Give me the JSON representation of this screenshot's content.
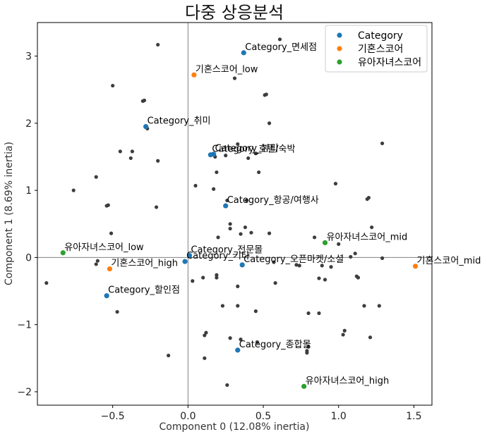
{
  "chart_data": {
    "type": "scatter",
    "title": "다중 상응분석",
    "xlabel": "Component 0 (12.08% inertia)",
    "ylabel": "Component 1 (8.69% inertia)",
    "xlim": [
      -1.0,
      1.62
    ],
    "ylim": [
      -2.2,
      3.5
    ],
    "xticks": [
      {
        "value": -0.5,
        "label": "−0.5"
      },
      {
        "value": 0.0,
        "label": "0.0"
      },
      {
        "value": 0.5,
        "label": "0.5"
      },
      {
        "value": 1.0,
        "label": "1.0"
      },
      {
        "value": 1.5,
        "label": "1.5"
      }
    ],
    "yticks": [
      {
        "value": -2,
        "label": "−2"
      },
      {
        "value": -1,
        "label": "−1"
      },
      {
        "value": 0,
        "label": "0"
      },
      {
        "value": 1,
        "label": "1"
      },
      {
        "value": 2,
        "label": "2"
      },
      {
        "value": 3,
        "label": "3"
      }
    ],
    "grid": false,
    "reference_lines": {
      "x": 0,
      "y": 0
    },
    "legend_position": "top-right",
    "background_points": {
      "color": "#3d3d3d",
      "points": [
        [
          0.61,
          3.25
        ],
        [
          -0.2,
          3.17
        ],
        [
          -0.5,
          2.56
        ],
        [
          -0.29,
          2.34
        ],
        [
          -0.3,
          2.33
        ],
        [
          0.31,
          2.67
        ],
        [
          0.51,
          2.42
        ],
        [
          0.52,
          2.43
        ],
        [
          0.54,
          2.0
        ],
        [
          1.29,
          1.7
        ],
        [
          0.33,
          1.69
        ],
        [
          -0.45,
          1.58
        ],
        [
          -0.37,
          1.58
        ],
        [
          -0.38,
          1.48
        ],
        [
          -0.2,
          1.44
        ],
        [
          -0.27,
          1.92
        ],
        [
          0.45,
          1.55
        ],
        [
          0.18,
          1.5
        ],
        [
          0.25,
          1.52
        ],
        [
          0.4,
          1.48
        ],
        [
          0.47,
          1.27
        ],
        [
          0.19,
          1.27
        ],
        [
          -0.61,
          1.2
        ],
        [
          0.05,
          1.07
        ],
        [
          0.17,
          1.02
        ],
        [
          -0.76,
          1.0
        ],
        [
          0.98,
          1.1
        ],
        [
          1.2,
          0.89
        ],
        [
          1.19,
          0.87
        ],
        [
          0.26,
          0.85
        ],
        [
          0.39,
          0.85
        ],
        [
          -0.54,
          0.77
        ],
        [
          -0.53,
          0.78
        ],
        [
          -0.21,
          0.75
        ],
        [
          0.28,
          0.5
        ],
        [
          0.28,
          0.43
        ],
        [
          0.38,
          0.45
        ],
        [
          0.42,
          0.37
        ],
        [
          0.54,
          0.36
        ],
        [
          -0.51,
          0.36
        ],
        [
          1.22,
          0.45
        ],
        [
          0.2,
          0.3
        ],
        [
          0.35,
          0.35
        ],
        [
          0.84,
          0.3
        ],
        [
          1.0,
          0.2
        ],
        [
          1.11,
          0.06
        ],
        [
          1.08,
          0.01
        ],
        [
          1.29,
          -0.01
        ],
        [
          -0.6,
          -0.05
        ],
        [
          -0.61,
          -0.1
        ],
        [
          0.57,
          -0.07
        ],
        [
          0.74,
          -0.12
        ],
        [
          0.72,
          -0.11
        ],
        [
          0.89,
          -0.12
        ],
        [
          0.95,
          -0.14
        ],
        [
          0.1,
          -0.3
        ],
        [
          0.19,
          -0.26
        ],
        [
          0.19,
          -0.3
        ],
        [
          0.03,
          -0.35
        ],
        [
          -0.94,
          -0.38
        ],
        [
          0.33,
          -0.43
        ],
        [
          0.58,
          -0.38
        ],
        [
          0.87,
          -0.31
        ],
        [
          0.91,
          -0.33
        ],
        [
          1.12,
          -0.28
        ],
        [
          1.13,
          -0.3
        ],
        [
          1.17,
          -0.72
        ],
        [
          1.27,
          -0.72
        ],
        [
          0.23,
          -0.72
        ],
        [
          0.33,
          -0.72
        ],
        [
          -0.47,
          -0.81
        ],
        [
          0.45,
          -0.8
        ],
        [
          0.8,
          -0.83
        ],
        [
          0.87,
          -0.83
        ],
        [
          1.04,
          -1.09
        ],
        [
          1.03,
          -1.15
        ],
        [
          1.21,
          -1.19
        ],
        [
          0.12,
          -1.12
        ],
        [
          0.11,
          -1.16
        ],
        [
          0.28,
          -1.2
        ],
        [
          0.35,
          -1.22
        ],
        [
          0.46,
          -1.26
        ],
        [
          0.79,
          -1.39
        ],
        [
          0.8,
          -1.33
        ],
        [
          -0.13,
          -1.46
        ],
        [
          0.79,
          -1.42
        ],
        [
          0.11,
          -1.5
        ],
        [
          0.26,
          -1.9
        ]
      ]
    },
    "series": [
      {
        "name": "Category",
        "color": "#1f77b4",
        "points": [
          {
            "x": 0.37,
            "y": 3.05,
            "label": "Category_면세점"
          },
          {
            "x": -0.28,
            "y": 1.95,
            "label": "Category_취미"
          },
          {
            "x": 0.15,
            "y": 1.53,
            "label": "Category_호텔/숙박"
          },
          {
            "x": 0.17,
            "y": 1.54,
            "label": "Category_뷰티"
          },
          {
            "x": 0.25,
            "y": 0.77,
            "label": "Category_항공/여행사"
          },
          {
            "x": 0.01,
            "y": 0.03,
            "label": "Category_전문몰"
          },
          {
            "x": -0.02,
            "y": -0.06,
            "label": "Category_기타"
          },
          {
            "x": 0.36,
            "y": -0.11,
            "label": "Category_오픈마켓/소셜"
          },
          {
            "x": -0.54,
            "y": -0.57,
            "label": "Category_할인점"
          },
          {
            "x": 0.33,
            "y": -1.38,
            "label": "Category_종합몰"
          }
        ]
      },
      {
        "name": "기혼스코어",
        "color": "#ff7f0e",
        "points": [
          {
            "x": 0.04,
            "y": 2.72,
            "label": "기혼스코어_low"
          },
          {
            "x": -0.52,
            "y": -0.17,
            "label": "기혼스코어_high"
          },
          {
            "x": 1.51,
            "y": -0.13,
            "label": "기혼스코어_mid"
          }
        ]
      },
      {
        "name": "유아자녀스코어",
        "color": "#2ca02c",
        "points": [
          {
            "x": -0.83,
            "y": 0.07,
            "label": "유아자녀스코어_low"
          },
          {
            "x": 0.91,
            "y": 0.22,
            "label": "유아자녀스코어_mid"
          },
          {
            "x": 0.77,
            "y": -1.92,
            "label": "유아자녀스코어_high"
          }
        ]
      }
    ]
  }
}
